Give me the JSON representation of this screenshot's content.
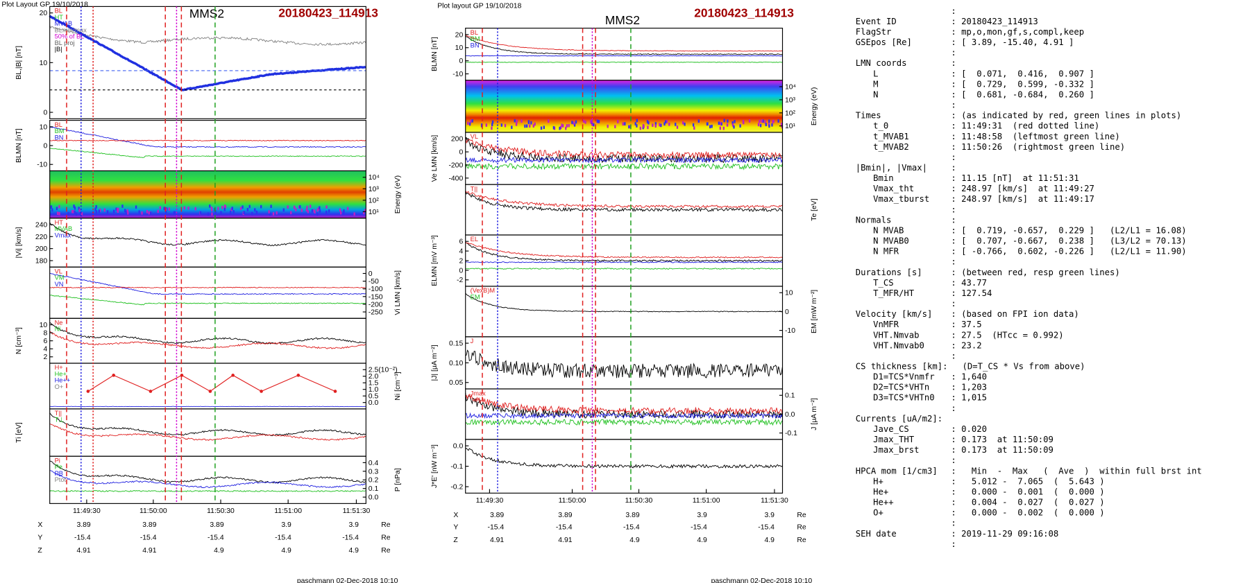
{
  "left_plot": {
    "header": "Plot Layout GP 19/10/2018",
    "probe": "MMS2",
    "event": "20180423_114913",
    "panels": [
      {
        "ylabel": "BL,|B| [nT]",
        "yticks": [
          "20",
          "10",
          "0"
        ],
        "legend": [
          "BL",
          "HT",
          "MVAB",
          "BLmin/max",
          "50% of BL",
          "BL proj",
          "|B|"
        ]
      },
      {
        "ylabel": "BLMN [nT]",
        "yticks": [
          "10",
          "0",
          "-10"
        ],
        "legend": [
          "BL",
          "BM",
          "BN"
        ]
      },
      {
        "ylabel": "Energy (eV)",
        "yticks": [
          "10⁴",
          "10³",
          "10²",
          "10¹"
        ]
      },
      {
        "ylabel": "|Vi| [km/s]",
        "yticks": [
          "240",
          "220",
          "200",
          "180"
        ],
        "legend": [
          "HT",
          "MVAB",
          "Vmax"
        ]
      },
      {
        "ylabel": "Vi LMN [km/s]",
        "yticks": [
          "0",
          "-50",
          "-100",
          "-150",
          "-200",
          "-250"
        ],
        "legend": [
          "VL",
          "VM",
          "VN"
        ]
      },
      {
        "ylabel": "N [cm⁻³]",
        "yticks": [
          "10",
          "8",
          "6",
          "4",
          "2"
        ],
        "legend": [
          "Ne",
          "Ni"
        ]
      },
      {
        "ylabel": "Ni [cm⁻³]",
        "yticks": [
          "2.5(10⁻²)",
          "2.0",
          "1.5",
          "1.0",
          "0.5",
          "0.0"
        ],
        "legend": [
          "H+",
          "He+",
          "He++",
          "O+"
        ]
      },
      {
        "ylabel": "Ti [eV]",
        "legend": [
          "T||",
          "T⊥"
        ]
      },
      {
        "ylabel": "P [nPa]",
        "yticks": [
          "0.4",
          "0.3",
          "0.2",
          "0.1",
          "0.0"
        ],
        "legend": [
          "Pi",
          "Pe",
          "PB",
          "Ptot"
        ]
      }
    ],
    "xticks": [
      "11:49:30",
      "11:50:00",
      "11:50:30",
      "11:51:00",
      "11:51:30"
    ],
    "positions": [
      {
        "label": "X",
        "values": [
          "3.89",
          "3.89",
          "3.89",
          "3.9",
          "3.9"
        ],
        "unit": "Re"
      },
      {
        "label": "Y",
        "values": [
          "-15.4",
          "-15.4",
          "-15.4",
          "-15.4",
          "-15.4"
        ],
        "unit": "Re"
      },
      {
        "label": "Z",
        "values": [
          "4.91",
          "4.91",
          "4.9",
          "4.9",
          "4.9"
        ],
        "unit": "Re"
      }
    ],
    "footer": "paschmann 02-Dec-2018 10:10"
  },
  "middle_plot": {
    "header": "Plot layout GP 19/10/2018",
    "probe": "MMS2",
    "event": "20180423_114913",
    "panels": [
      {
        "ylabel": "BLMN [nT]",
        "yticks": [
          "20",
          "10",
          "0",
          "-10"
        ],
        "legend": [
          "BL",
          "BM",
          "BN"
        ]
      },
      {
        "ylabel": "Energy (eV)",
        "yticks": [
          "10⁴",
          "10³",
          "10²",
          "10¹"
        ]
      },
      {
        "ylabel": "Ve LMN [km/s]",
        "yticks": [
          "200",
          "0",
          "-200",
          "-400"
        ],
        "legend": [
          "VL"
        ]
      },
      {
        "ylabel": "Te [eV]",
        "legend": [
          "T||"
        ]
      },
      {
        "ylabel": "ELMN [mV m⁻³]",
        "yticks": [
          "6",
          "4",
          "2",
          "0",
          "-2"
        ],
        "legend": [
          "EL"
        ]
      },
      {
        "ylabel": "EM [mW m⁻²]",
        "yticks": [
          "10",
          "0",
          "-10"
        ],
        "legend": [
          "(VexB)M",
          "EM"
        ]
      },
      {
        "ylabel": "|J| [μA m⁻²]",
        "yticks": [
          "0.15",
          "0.10",
          "0.05"
        ],
        "legend": [
          "J"
        ]
      },
      {
        "ylabel": "J [μA m⁻²]",
        "yticks": [
          "0.1",
          "0.0",
          "-0.1"
        ],
        "legend": [
          "Jmax"
        ]
      },
      {
        "ylabel": "J*E' [nW m⁻³]",
        "yticks": [
          "0.0",
          "-0.1",
          "-0.2"
        ]
      }
    ],
    "xticks": [
      "11:49:30",
      "11:50:00",
      "11:50:30",
      "11:51:00",
      "11:51:30"
    ],
    "positions": [
      {
        "label": "X",
        "values": [
          "3.89",
          "3.89",
          "3.89",
          "3.9",
          "3.9"
        ],
        "unit": "Re"
      },
      {
        "label": "Y",
        "values": [
          "-15.4",
          "-15.4",
          "-15.4",
          "-15.4",
          "-15.4"
        ],
        "unit": "Re"
      },
      {
        "label": "Z",
        "values": [
          "4.91",
          "4.91",
          "4.9",
          "4.9",
          "4.9"
        ],
        "unit": "Re"
      }
    ],
    "footer": "paschmann 02-Dec-2018 10:10"
  },
  "info": {
    "lead": ":",
    "header": [
      {
        "key": "Event ID",
        "value": ": 20180423_114913"
      },
      {
        "key": "FlagStr",
        "value": ": mp,o,mon,gf,s,compl,keep"
      },
      {
        "key": "GSEpos [Re]",
        "value": ": [ 3.89, -15.40, 4.91 ]"
      }
    ],
    "sections": [
      {
        "sep": ":",
        "key": "LMN coords",
        "value": ":",
        "items": [
          {
            "key": "L",
            "value": ": [  0.071,  0.416,  0.907 ]"
          },
          {
            "key": "M",
            "value": ": [  0.729,  0.599, -0.332 ]"
          },
          {
            "key": "N",
            "value": ": [  0.681, -0.684,  0.260 ]"
          }
        ]
      },
      {
        "sep": ":",
        "key": "Times",
        "value": ": (as indicated by red, green lines in plots)",
        "items": [
          {
            "key": "t_0",
            "value": ": 11:49:31  (red dotted line)"
          },
          {
            "key": "t_MVAB1",
            "value": ": 11:48:58  (leftmost green line)"
          },
          {
            "key": "t_MVAB2",
            "value": ": 11:50:26  (rightmost green line)"
          }
        ]
      },
      {
        "sep": ":",
        "key": "|Bmin|, |Vmax|",
        "value": ":",
        "items": [
          {
            "key": "Bmin",
            "value": ": 11.15 [nT]  at 11:51:31"
          },
          {
            "key": "Vmax_tht",
            "value": ": 248.97 [km/s]  at 11:49:27"
          },
          {
            "key": "Vmax_tburst",
            "value": ": 248.97 [km/s]  at 11:49:17"
          }
        ]
      },
      {
        "sep": ":",
        "key": "Normals",
        "value": ":",
        "items": [
          {
            "key": "N MVAB",
            "value": ": [  0.719, -0.657,  0.229 ]   (L2/L1 = 16.08)"
          },
          {
            "key": "N MVAB0",
            "value": ": [  0.707, -0.667,  0.238 ]   (L3/L2 = 70.13)"
          },
          {
            "key": "N MFR",
            "value": ": [ -0.766,  0.602, -0.226 ]   (L2/L1 = 11.90)"
          }
        ]
      },
      {
        "sep": ":",
        "key": "Durations [s]",
        "value": ": (between red, resp green lines)",
        "items": [
          {
            "key": "T_CS",
            "value": ": 43.77"
          },
          {
            "key": "T_MFR/HT",
            "value": ": 127.54"
          }
        ]
      },
      {
        "sep": ":",
        "key": "Velocity [km/s]",
        "value": ": (based on FPI ion data)",
        "items": [
          {
            "key": "VnMFR",
            "value": ": 37.5"
          },
          {
            "key": "VHT.Nmvab",
            "value": ": 27.5  (HTcc = 0.992)"
          },
          {
            "key": "VHT.Nmvab0",
            "value": ": 23.2"
          }
        ]
      },
      {
        "sep": ":",
        "key": "CS thickness [km]:",
        "value": "(D=T_CS * Vs from above)",
        "items": [
          {
            "key": "D1=TCS*Vnmfr",
            "value": ": 1,640"
          },
          {
            "key": "D2=TCS*VHTn",
            "value": ": 1,203"
          },
          {
            "key": "D3=TCS*VHTn0",
            "value": ": 1,015"
          }
        ]
      },
      {
        "sep": ":",
        "key": "Currents [uA/m2]:",
        "items": [
          {
            "key": "Jave_CS",
            "value": ": 0.020"
          },
          {
            "key": "Jmax_THT",
            "value": ": 0.173  at 11:50:09"
          },
          {
            "key": "Jmax_brst",
            "value": ": 0.173  at 11:50:09"
          }
        ]
      },
      {
        "sep": ":",
        "key": "HPCA mom [1/cm3]",
        "value": ":   Min  -  Max   (  Ave  )  within full brst int",
        "items": [
          {
            "key": "H+",
            "value": ":   5.012 -  7.065  (  5.643 )"
          },
          {
            "key": "He+",
            "value": ":   0.000 -  0.001  (  0.000 )"
          },
          {
            "key": "He++",
            "value": ":   0.004 -  0.027  (  0.027 )"
          },
          {
            "key": "O+",
            "value": ":   0.000 -  0.002  (  0.000 )"
          }
        ]
      },
      {
        "sep": ":",
        "key": "SEH date",
        "value": ": 2019-11-29 09:16:08",
        "items": []
      }
    ],
    "end": ":"
  }
}
